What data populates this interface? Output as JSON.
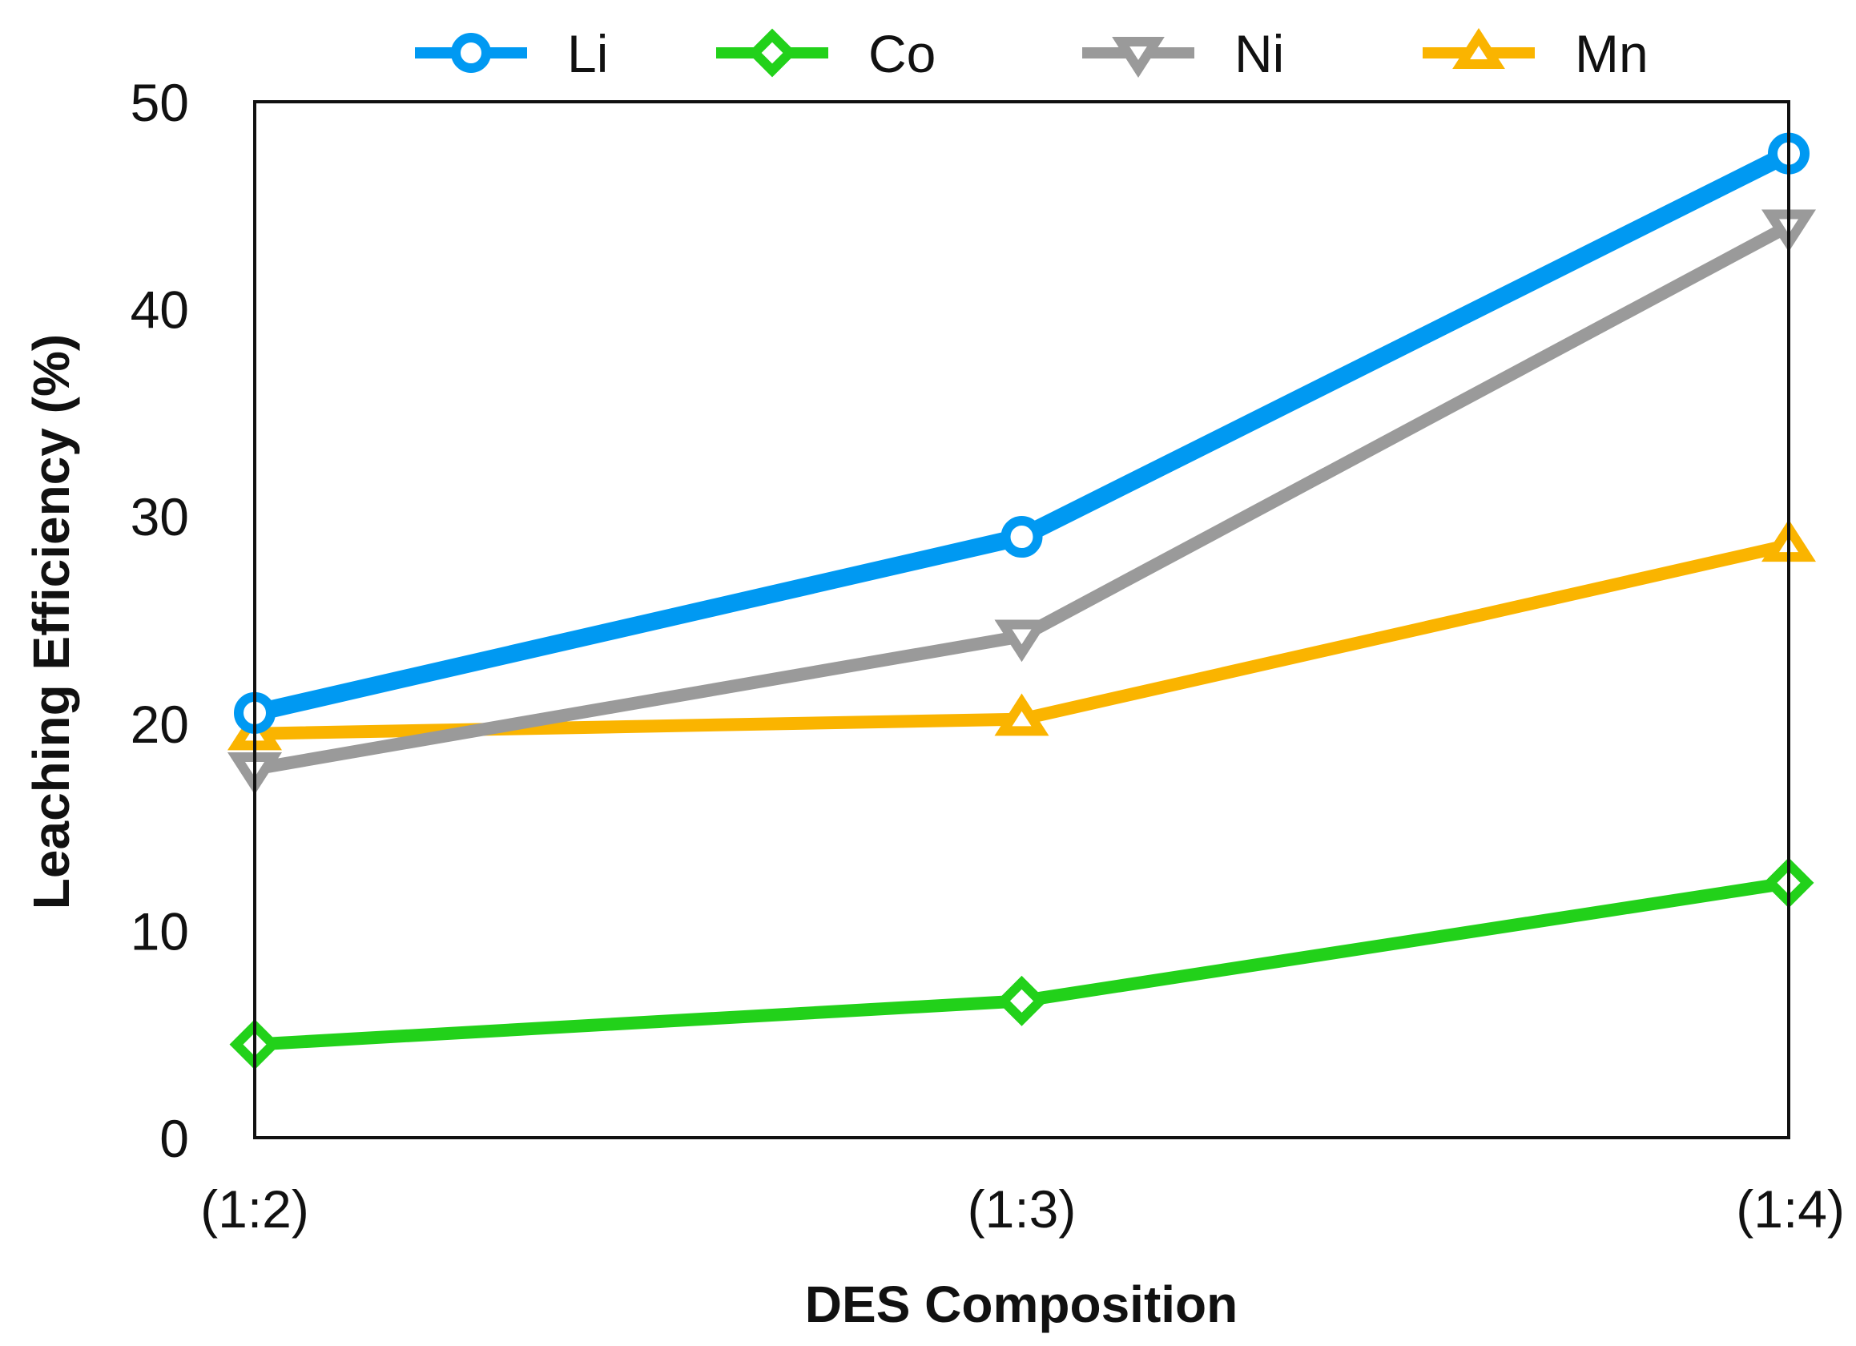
{
  "chart_data": {
    "type": "line",
    "title": "",
    "xlabel": "DES Composition",
    "ylabel": "Leaching Efficiency (%)",
    "categories": [
      "(1:2)",
      "(1:3)",
      "(1:4)"
    ],
    "ylim": [
      0,
      50
    ],
    "yticks": [
      "0",
      "10",
      "20",
      "30",
      "40",
      "50"
    ],
    "grid": false,
    "legend_position": "top",
    "series": [
      {
        "name": "Li",
        "values": [
          20.5,
          29.0,
          47.5
        ],
        "color": "#0099f2",
        "marker": "circle"
      },
      {
        "name": "Co",
        "values": [
          4.5,
          6.6,
          12.3
        ],
        "color": "#22d11a",
        "marker": "diamond"
      },
      {
        "name": "Ni",
        "values": [
          17.8,
          24.2,
          44.0
        ],
        "color": "#9a9a9a",
        "marker": "triangle-down"
      },
      {
        "name": "Mn",
        "values": [
          19.5,
          20.2,
          28.6
        ],
        "color": "#fab400",
        "marker": "triangle-up"
      }
    ]
  }
}
